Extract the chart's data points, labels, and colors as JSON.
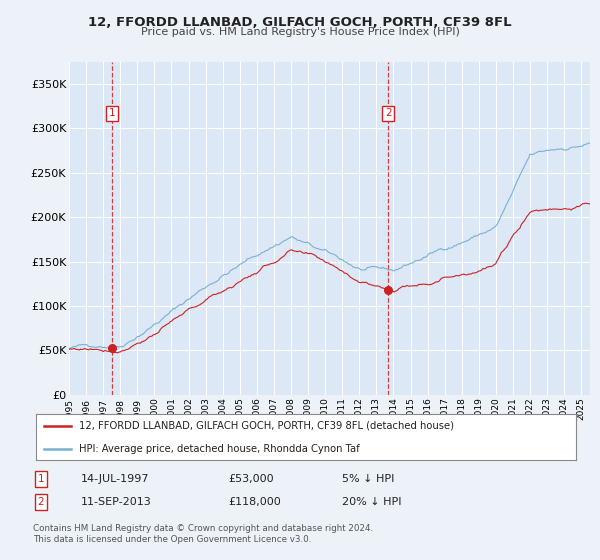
{
  "title_line1": "12, FFORDD LLANBAD, GILFACH GOCH, PORTH, CF39 8FL",
  "title_line2": "Price paid vs. HM Land Registry's House Price Index (HPI)",
  "bg_color": "#edf2f8",
  "plot_bg_color": "#dce8f5",
  "grid_color": "#ffffff",
  "hpi_color": "#7ab0d4",
  "price_color": "#cc2222",
  "marker_color": "#cc2222",
  "sale1_year": 1997.54,
  "sale1_price": 53000,
  "sale1_label": "14-JUL-1997",
  "sale1_amount": "£53,000",
  "sale1_note": "5% ↓ HPI",
  "sale2_year": 2013.7,
  "sale2_price": 118000,
  "sale2_label": "11-SEP-2013",
  "sale2_amount": "£118,000",
  "sale2_note": "20% ↓ HPI",
  "ylabel_ticks": [
    0,
    50000,
    100000,
    150000,
    200000,
    250000,
    300000,
    350000
  ],
  "ylabel_labels": [
    "£0",
    "£50K",
    "£100K",
    "£150K",
    "£200K",
    "£250K",
    "£300K",
    "£350K"
  ],
  "xmin": 1995.0,
  "xmax": 2025.5,
  "ymin": 0,
  "ymax": 375000,
  "legend_label1": "12, FFORDD LLANBAD, GILFACH GOCH, PORTH, CF39 8FL (detached house)",
  "legend_label2": "HPI: Average price, detached house, Rhondda Cynon Taf",
  "footnote1": "Contains HM Land Registry data © Crown copyright and database right 2024.",
  "footnote2": "This data is licensed under the Open Government Licence v3.0."
}
